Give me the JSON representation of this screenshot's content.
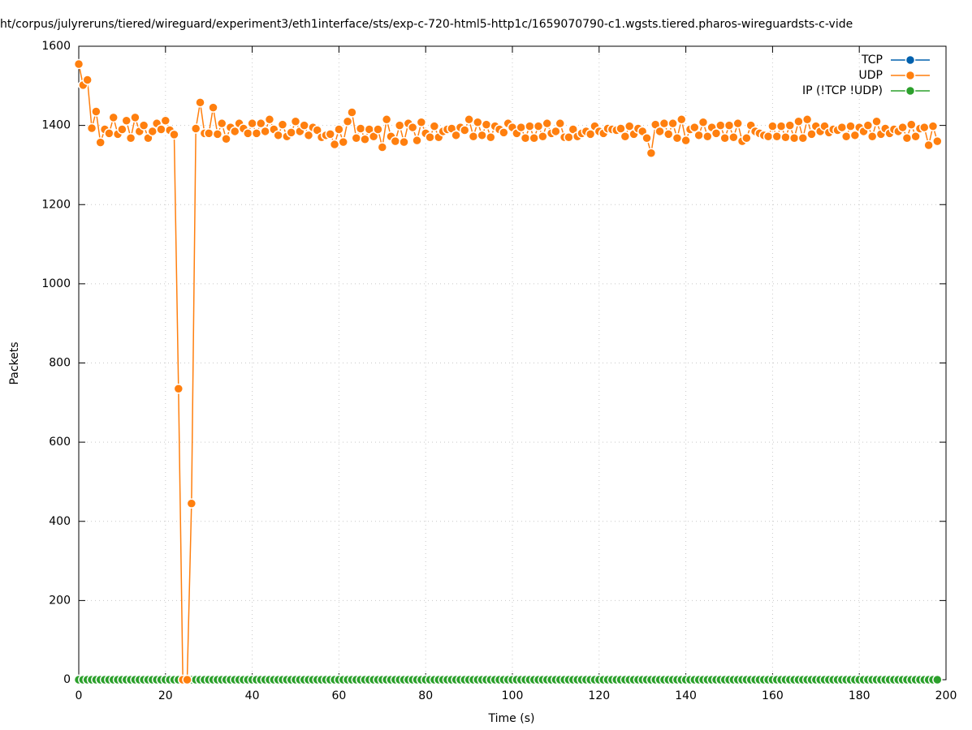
{
  "chart_data": {
    "type": "line",
    "title": "ht/corpus/julyreruns/tiered/wireguard/experiment3/eth1interface/sts/exp-c-720-html5-http1c/1659070790-c1.wgsts.tiered.pharos-wireguardsts-c-vide",
    "x_label": "Time (s)",
    "y_label": "Packets",
    "x": [
      0,
      1,
      2,
      3,
      4,
      5,
      6,
      7,
      8,
      9,
      10,
      11,
      12,
      13,
      14,
      15,
      16,
      17,
      18,
      19,
      20,
      21,
      22,
      23,
      24,
      25,
      26,
      27,
      28,
      29,
      30,
      31,
      32,
      33,
      34,
      35,
      36,
      37,
      38,
      39,
      40,
      41,
      42,
      43,
      44,
      45,
      46,
      47,
      48,
      49,
      50,
      51,
      52,
      53,
      54,
      55,
      56,
      57,
      58,
      59,
      60,
      61,
      62,
      63,
      64,
      65,
      66,
      67,
      68,
      69,
      70,
      71,
      72,
      73,
      74,
      75,
      76,
      77,
      78,
      79,
      80,
      81,
      82,
      83,
      84,
      85,
      86,
      87,
      88,
      89,
      90,
      91,
      92,
      93,
      94,
      95,
      96,
      97,
      98,
      99,
      100,
      101,
      102,
      103,
      104,
      105,
      106,
      107,
      108,
      109,
      110,
      111,
      112,
      113,
      114,
      115,
      116,
      117,
      118,
      119,
      120,
      121,
      122,
      123,
      124,
      125,
      126,
      127,
      128,
      129,
      130,
      131,
      132,
      133,
      134,
      135,
      136,
      137,
      138,
      139,
      140,
      141,
      142,
      143,
      144,
      145,
      146,
      147,
      148,
      149,
      150,
      151,
      152,
      153,
      154,
      155,
      156,
      157,
      158,
      159,
      160,
      161,
      162,
      163,
      164,
      165,
      166,
      167,
      168,
      169,
      170,
      171,
      172,
      173,
      174,
      175,
      176,
      177,
      178,
      179,
      180,
      181,
      182,
      183,
      184,
      185,
      186,
      187,
      188,
      189,
      190,
      191,
      192,
      193,
      194,
      195,
      196,
      197,
      198
    ],
    "series": [
      {
        "name": "TCP",
        "color": "#0060ad",
        "values": [
          0,
          0,
          0,
          0,
          0,
          0,
          0,
          0,
          0,
          0,
          0,
          0,
          0,
          0,
          0,
          0,
          0,
          0,
          0,
          0,
          0,
          0,
          0,
          0,
          0,
          0,
          0,
          0,
          0,
          0,
          0,
          0,
          0,
          0,
          0,
          0,
          0,
          0,
          0,
          0,
          0,
          0,
          0,
          0,
          0,
          0,
          0,
          0,
          0,
          0,
          0,
          0,
          0,
          0,
          0,
          0,
          0,
          0,
          0,
          0,
          0,
          0,
          0,
          0,
          0,
          0,
          0,
          0,
          0,
          0,
          0,
          0,
          0,
          0,
          0,
          0,
          0,
          0,
          0,
          0,
          0,
          0,
          0,
          0,
          0,
          0,
          0,
          0,
          0,
          0,
          0,
          0,
          0,
          0,
          0,
          0,
          0,
          0,
          0,
          0,
          0,
          0,
          0,
          0,
          0,
          0,
          0,
          0,
          0,
          0,
          0,
          0,
          0,
          0,
          0,
          0,
          0,
          0,
          0,
          0,
          0,
          0,
          0,
          0,
          0,
          0,
          0,
          0,
          0,
          0,
          0,
          0,
          0,
          0,
          0,
          0,
          0,
          0,
          0,
          0,
          0,
          0,
          0,
          0,
          0,
          0,
          0,
          0,
          0,
          0,
          0,
          0,
          0,
          0,
          0,
          0,
          0,
          0,
          0,
          0,
          0,
          0,
          0,
          0,
          0,
          0,
          0,
          0,
          0,
          0,
          0,
          0,
          0,
          0,
          0,
          0,
          0,
          0,
          0,
          0,
          0,
          0,
          0,
          0,
          0,
          0,
          0,
          0,
          0,
          0,
          0,
          0,
          0,
          0,
          0,
          0,
          0,
          0,
          0
        ]
      },
      {
        "name": "UDP",
        "color": "#ff7f0e",
        "values": [
          1555,
          1502,
          1515,
          1393,
          1435,
          1357,
          1390,
          1380,
          1420,
          1378,
          1390,
          1412,
          1368,
          1420,
          1385,
          1400,
          1368,
          1385,
          1405,
          1390,
          1412,
          1388,
          1377,
          735,
          0,
          0,
          445,
          1392,
          1458,
          1380,
          1380,
          1445,
          1378,
          1405,
          1366,
          1395,
          1385,
          1405,
          1392,
          1380,
          1405,
          1380,
          1405,
          1385,
          1415,
          1390,
          1375,
          1402,
          1372,
          1382,
          1410,
          1385,
          1400,
          1375,
          1395,
          1388,
          1370,
          1375,
          1378,
          1352,
          1390,
          1358,
          1410,
          1433,
          1368,
          1392,
          1365,
          1390,
          1372,
          1390,
          1345,
          1415,
          1372,
          1360,
          1400,
          1358,
          1405,
          1395,
          1362,
          1408,
          1380,
          1370,
          1398,
          1370,
          1385,
          1390,
          1392,
          1375,
          1395,
          1388,
          1415,
          1372,
          1408,
          1375,
          1402,
          1370,
          1398,
          1390,
          1382,
          1405,
          1395,
          1380,
          1395,
          1368,
          1398,
          1368,
          1398,
          1372,
          1405,
          1380,
          1385,
          1405,
          1370,
          1370,
          1390,
          1372,
          1380,
          1385,
          1378,
          1398,
          1385,
          1380,
          1392,
          1390,
          1388,
          1392,
          1372,
          1398,
          1378,
          1392,
          1385,
          1368,
          1330,
          1402,
          1385,
          1405,
          1378,
          1405,
          1368,
          1415,
          1362,
          1390,
          1395,
          1375,
          1408,
          1372,
          1395,
          1380,
          1400,
          1368,
          1400,
          1370,
          1405,
          1360,
          1368,
          1400,
          1385,
          1380,
          1375,
          1372,
          1398,
          1372,
          1398,
          1370,
          1400,
          1368,
          1410,
          1368,
          1415,
          1378,
          1398,
          1385,
          1398,
          1382,
          1390,
          1388,
          1395,
          1372,
          1398,
          1375,
          1395,
          1385,
          1400,
          1372,
          1410,
          1378,
          1392,
          1380,
          1390,
          1385,
          1395,
          1368,
          1402,
          1372,
          1392,
          1395,
          1350,
          1398,
          1360
        ]
      },
      {
        "name": "IP (!TCP  !UDP)",
        "color": "#2ca02c",
        "values": [
          0,
          0,
          0,
          0,
          0,
          0,
          0,
          0,
          0,
          0,
          0,
          0,
          0,
          0,
          0,
          0,
          0,
          0,
          0,
          0,
          0,
          0,
          0,
          0,
          0,
          0,
          0,
          0,
          0,
          0,
          0,
          0,
          0,
          0,
          0,
          0,
          0,
          0,
          0,
          0,
          0,
          0,
          0,
          0,
          0,
          0,
          0,
          0,
          0,
          0,
          0,
          0,
          0,
          0,
          0,
          0,
          0,
          0,
          0,
          0,
          0,
          0,
          0,
          0,
          0,
          0,
          0,
          0,
          0,
          0,
          0,
          0,
          0,
          0,
          0,
          0,
          0,
          0,
          0,
          0,
          0,
          0,
          0,
          0,
          0,
          0,
          0,
          0,
          0,
          0,
          0,
          0,
          0,
          0,
          0,
          0,
          0,
          0,
          0,
          0,
          0,
          0,
          0,
          0,
          0,
          0,
          0,
          0,
          0,
          0,
          0,
          0,
          0,
          0,
          0,
          0,
          0,
          0,
          0,
          0,
          0,
          0,
          0,
          0,
          0,
          0,
          0,
          0,
          0,
          0,
          0,
          0,
          0,
          0,
          0,
          0,
          0,
          0,
          0,
          0,
          0,
          0,
          0,
          0,
          0,
          0,
          0,
          0,
          0,
          0,
          0,
          0,
          0,
          0,
          0,
          0,
          0,
          0,
          0,
          0,
          0,
          0,
          0,
          0,
          0,
          0,
          0,
          0,
          0,
          0,
          0,
          0,
          0,
          0,
          0,
          0,
          0,
          0,
          0,
          0,
          0,
          0,
          0,
          0,
          0,
          0,
          0,
          0,
          0,
          0,
          0,
          0,
          0,
          0,
          0,
          0,
          0,
          0,
          0
        ]
      }
    ],
    "xlim": [
      0,
      200
    ],
    "xticks": [
      0,
      20,
      40,
      60,
      80,
      100,
      120,
      140,
      160,
      180,
      200
    ],
    "ylim": [
      0,
      1600
    ],
    "yticks": [
      0,
      200,
      400,
      600,
      800,
      1000,
      1200,
      1400,
      1600
    ],
    "grid": true,
    "legend": "top-right"
  }
}
